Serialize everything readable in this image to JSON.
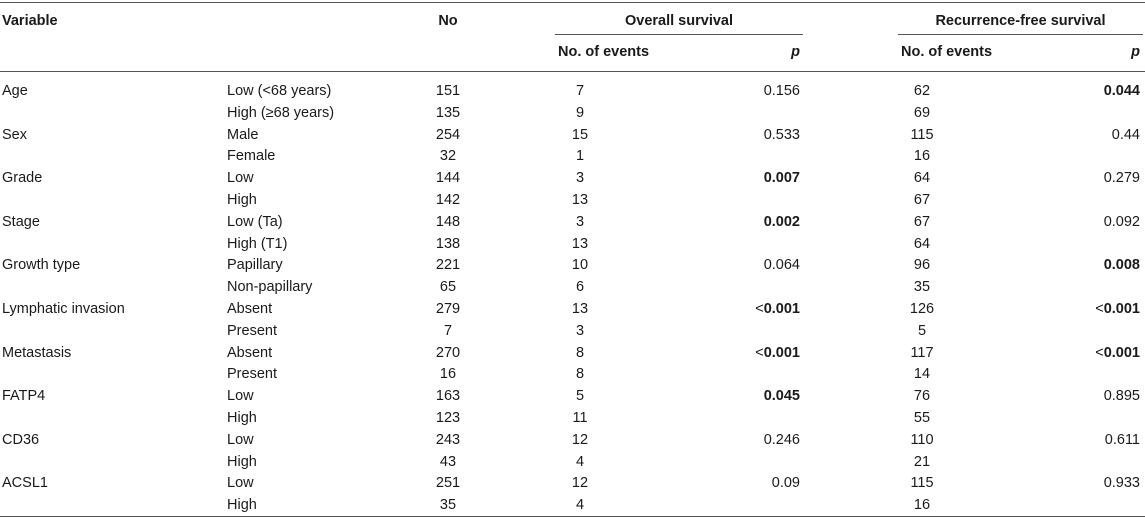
{
  "header": {
    "variable": "Variable",
    "no": "No",
    "overall_survival": "Overall survival",
    "recurrence_free_survival": "Recurrence-free survival",
    "no_of_events": "No. of events",
    "p": "p"
  },
  "rows": [
    {
      "variable": "Age",
      "group": "Low (<68 years)",
      "no": "151",
      "os_events": "7",
      "os_p": "0.156",
      "os_p_bold": false,
      "os_p_prefix": "",
      "rfs_events": "62",
      "rfs_p": "0.044",
      "rfs_p_bold": true,
      "rfs_p_prefix": ""
    },
    {
      "variable": "",
      "group": "High (≥68 years)",
      "no": "135",
      "os_events": "9",
      "os_p": "",
      "os_p_bold": false,
      "os_p_prefix": "",
      "rfs_events": "69",
      "rfs_p": "",
      "rfs_p_bold": false,
      "rfs_p_prefix": ""
    },
    {
      "variable": "Sex",
      "group": "Male",
      "no": "254",
      "os_events": "15",
      "os_p": "0.533",
      "os_p_bold": false,
      "os_p_prefix": "",
      "rfs_events": "115",
      "rfs_p": "0.44",
      "rfs_p_bold": false,
      "rfs_p_prefix": ""
    },
    {
      "variable": "",
      "group": "Female",
      "no": "32",
      "os_events": "1",
      "os_p": "",
      "os_p_bold": false,
      "os_p_prefix": "",
      "rfs_events": "16",
      "rfs_p": "",
      "rfs_p_bold": false,
      "rfs_p_prefix": ""
    },
    {
      "variable": "Grade",
      "group": "Low",
      "no": "144",
      "os_events": "3",
      "os_p": "0.007",
      "os_p_bold": true,
      "os_p_prefix": "",
      "rfs_events": "64",
      "rfs_p": "0.279",
      "rfs_p_bold": false,
      "rfs_p_prefix": ""
    },
    {
      "variable": "",
      "group": "High",
      "no": "142",
      "os_events": "13",
      "os_p": "",
      "os_p_bold": false,
      "os_p_prefix": "",
      "rfs_events": "67",
      "rfs_p": "",
      "rfs_p_bold": false,
      "rfs_p_prefix": ""
    },
    {
      "variable": "Stage",
      "group": "Low (Ta)",
      "no": "148",
      "os_events": "3",
      "os_p": "0.002",
      "os_p_bold": true,
      "os_p_prefix": "",
      "rfs_events": "67",
      "rfs_p": "0.092",
      "rfs_p_bold": false,
      "rfs_p_prefix": ""
    },
    {
      "variable": "",
      "group": "High (T1)",
      "no": "138",
      "os_events": "13",
      "os_p": "",
      "os_p_bold": false,
      "os_p_prefix": "",
      "rfs_events": "64",
      "rfs_p": "",
      "rfs_p_bold": false,
      "rfs_p_prefix": ""
    },
    {
      "variable": "Growth type",
      "group": "Papillary",
      "no": "221",
      "os_events": "10",
      "os_p": "0.064",
      "os_p_bold": false,
      "os_p_prefix": "",
      "rfs_events": "96",
      "rfs_p": "0.008",
      "rfs_p_bold": true,
      "rfs_p_prefix": ""
    },
    {
      "variable": "",
      "group": "Non-papillary",
      "no": "65",
      "os_events": "6",
      "os_p": "",
      "os_p_bold": false,
      "os_p_prefix": "",
      "rfs_events": "35",
      "rfs_p": "",
      "rfs_p_bold": false,
      "rfs_p_prefix": ""
    },
    {
      "variable": "Lymphatic invasion",
      "group": "Absent",
      "no": "279",
      "os_events": "13",
      "os_p": "0.001",
      "os_p_bold": true,
      "os_p_prefix": "<",
      "rfs_events": "126",
      "rfs_p": "0.001",
      "rfs_p_bold": true,
      "rfs_p_prefix": "<"
    },
    {
      "variable": "",
      "group": "Present",
      "no": "7",
      "os_events": "3",
      "os_p": "",
      "os_p_bold": false,
      "os_p_prefix": "",
      "rfs_events": "5",
      "rfs_p": "",
      "rfs_p_bold": false,
      "rfs_p_prefix": ""
    },
    {
      "variable": "Metastasis",
      "group": "Absent",
      "no": "270",
      "os_events": "8",
      "os_p": "0.001",
      "os_p_bold": true,
      "os_p_prefix": "<",
      "rfs_events": "117",
      "rfs_p": "0.001",
      "rfs_p_bold": true,
      "rfs_p_prefix": "<"
    },
    {
      "variable": "",
      "group": "Present",
      "no": "16",
      "os_events": "8",
      "os_p": "",
      "os_p_bold": false,
      "os_p_prefix": "",
      "rfs_events": "14",
      "rfs_p": "",
      "rfs_p_bold": false,
      "rfs_p_prefix": ""
    },
    {
      "variable": "FATP4",
      "group": "Low",
      "no": "163",
      "os_events": "5",
      "os_p": "0.045",
      "os_p_bold": true,
      "os_p_prefix": "",
      "rfs_events": "76",
      "rfs_p": "0.895",
      "rfs_p_bold": false,
      "rfs_p_prefix": ""
    },
    {
      "variable": "",
      "group": "High",
      "no": "123",
      "os_events": "11",
      "os_p": "",
      "os_p_bold": false,
      "os_p_prefix": "",
      "rfs_events": "55",
      "rfs_p": "",
      "rfs_p_bold": false,
      "rfs_p_prefix": ""
    },
    {
      "variable": "CD36",
      "group": "Low",
      "no": "243",
      "os_events": "12",
      "os_p": "0.246",
      "os_p_bold": false,
      "os_p_prefix": "",
      "rfs_events": "110",
      "rfs_p": "0.611",
      "rfs_p_bold": false,
      "rfs_p_prefix": ""
    },
    {
      "variable": "",
      "group": "High",
      "no": "43",
      "os_events": "4",
      "os_p": "",
      "os_p_bold": false,
      "os_p_prefix": "",
      "rfs_events": "21",
      "rfs_p": "",
      "rfs_p_bold": false,
      "rfs_p_prefix": ""
    },
    {
      "variable": "ACSL1",
      "group": "Low",
      "no": "251",
      "os_events": "12",
      "os_p": "0.09",
      "os_p_bold": false,
      "os_p_prefix": "",
      "rfs_events": "115",
      "rfs_p": "0.933",
      "rfs_p_bold": false,
      "rfs_p_prefix": ""
    },
    {
      "variable": "",
      "group": "High",
      "no": "35",
      "os_events": "4",
      "os_p": "",
      "os_p_bold": false,
      "os_p_prefix": "",
      "rfs_events": "16",
      "rfs_p": "",
      "rfs_p_bold": false,
      "rfs_p_prefix": ""
    }
  ]
}
